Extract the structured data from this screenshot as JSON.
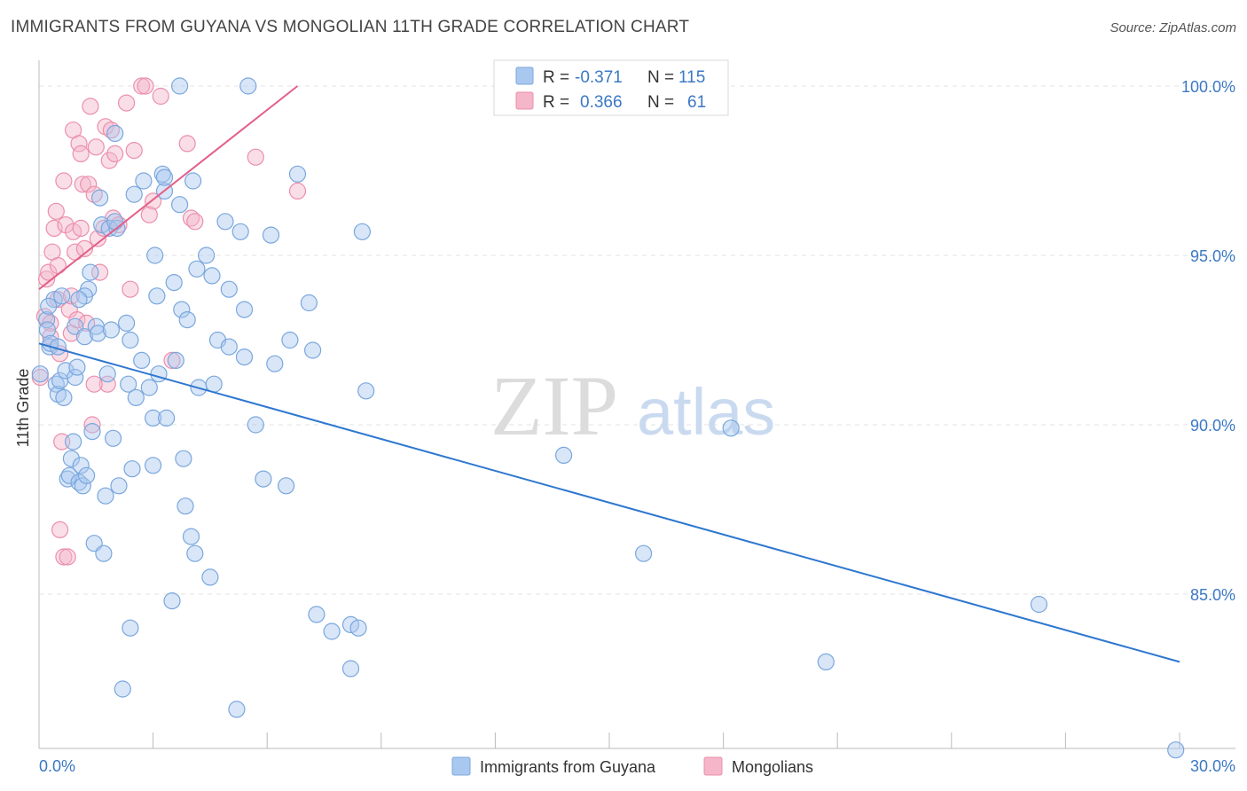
{
  "chart_data": {
    "type": "scatter",
    "title": "IMMIGRANTS FROM GUYANA VS MONGOLIAN 11TH GRADE CORRELATION CHART",
    "source": "Source: ZipAtlas.com",
    "xlabel": "",
    "ylabel": "11th Grade",
    "xlim": [
      0,
      30
    ],
    "ylim": [
      80.5,
      100.5
    ],
    "x_tick_labels": [
      "0.0%",
      "30.0%"
    ],
    "y_ticks": [
      {
        "value": 100,
        "label": "100.0%"
      },
      {
        "value": 95,
        "label": "95.0%"
      },
      {
        "value": 90,
        "label": "90.0%"
      },
      {
        "value": 85,
        "label": "85.0%"
      }
    ],
    "grid": true,
    "legend_position": "bottom-center",
    "watermark": "ZIPatlas",
    "colors": {
      "guyana": "#a9c8ef",
      "guyana_line": "#2e77d0",
      "mongolian": "#f5b6c9",
      "mongolian_line": "#e36089",
      "axis_text": "#3b78c4"
    },
    "stats_box": {
      "rows": [
        {
          "series": "guyana",
          "r_label": "R =",
          "r_value": "-0.371",
          "n_label": "N =",
          "n_value": "115"
        },
        {
          "series": "mongolian",
          "r_label": "R =",
          "r_value": "0.366",
          "n_label": "N =",
          "n_value": "61"
        }
      ]
    },
    "series": [
      {
        "name": "Immigrants from Guyana",
        "key": "guyana",
        "trendline": {
          "x": [
            0,
            30
          ],
          "y": [
            92.4,
            83.0
          ]
        },
        "points": [
          [
            0.03,
            91.5
          ],
          [
            0.2,
            93.1
          ],
          [
            0.22,
            92.8
          ],
          [
            0.28,
            92.3
          ],
          [
            0.3,
            92.4
          ],
          [
            0.4,
            93.7
          ],
          [
            0.45,
            91.2
          ],
          [
            0.5,
            90.9
          ],
          [
            0.55,
            91.3
          ],
          [
            0.6,
            93.8
          ],
          [
            0.65,
            90.8
          ],
          [
            0.7,
            91.6
          ],
          [
            0.75,
            88.4
          ],
          [
            0.8,
            88.5
          ],
          [
            0.85,
            89.0
          ],
          [
            0.9,
            89.5
          ],
          [
            0.95,
            92.9
          ],
          [
            0.95,
            91.4
          ],
          [
            1.0,
            91.7
          ],
          [
            1.05,
            88.3
          ],
          [
            1.1,
            88.8
          ],
          [
            1.15,
            88.2
          ],
          [
            1.2,
            92.6
          ],
          [
            1.25,
            88.5
          ],
          [
            1.3,
            94.0
          ],
          [
            1.35,
            94.5
          ],
          [
            1.4,
            89.8
          ],
          [
            1.45,
            86.5
          ],
          [
            1.5,
            92.9
          ],
          [
            1.55,
            92.7
          ],
          [
            1.6,
            96.7
          ],
          [
            1.65,
            95.9
          ],
          [
            1.7,
            86.2
          ],
          [
            1.75,
            87.9
          ],
          [
            1.8,
            91.5
          ],
          [
            1.85,
            95.8
          ],
          [
            1.9,
            92.8
          ],
          [
            1.95,
            89.6
          ],
          [
            2.0,
            98.6
          ],
          [
            2.05,
            95.8
          ],
          [
            2.1,
            88.2
          ],
          [
            2.2,
            82.2
          ],
          [
            2.3,
            93.0
          ],
          [
            2.35,
            91.2
          ],
          [
            2.4,
            92.5
          ],
          [
            2.4,
            84.0
          ],
          [
            2.45,
            88.7
          ],
          [
            2.5,
            96.8
          ],
          [
            2.55,
            90.8
          ],
          [
            2.7,
            91.9
          ],
          [
            2.75,
            97.2
          ],
          [
            2.9,
            91.1
          ],
          [
            3.0,
            88.8
          ],
          [
            3.0,
            90.2
          ],
          [
            3.05,
            95.0
          ],
          [
            3.1,
            93.8
          ],
          [
            3.15,
            91.5
          ],
          [
            3.25,
            97.4
          ],
          [
            3.3,
            96.9
          ],
          [
            3.35,
            90.2
          ],
          [
            3.5,
            84.8
          ],
          [
            3.55,
            94.2
          ],
          [
            3.6,
            91.9
          ],
          [
            3.7,
            100.0
          ],
          [
            3.7,
            96.5
          ],
          [
            3.75,
            93.4
          ],
          [
            3.8,
            89.0
          ],
          [
            3.85,
            87.6
          ],
          [
            3.9,
            93.1
          ],
          [
            4.0,
            86.7
          ],
          [
            4.05,
            97.2
          ],
          [
            4.1,
            86.2
          ],
          [
            4.15,
            94.6
          ],
          [
            4.2,
            91.1
          ],
          [
            4.4,
            95.0
          ],
          [
            4.5,
            85.5
          ],
          [
            4.55,
            94.4
          ],
          [
            4.6,
            91.2
          ],
          [
            4.7,
            92.5
          ],
          [
            4.9,
            96.0
          ],
          [
            5.0,
            92.3
          ],
          [
            5.2,
            81.6
          ],
          [
            5.3,
            95.7
          ],
          [
            5.4,
            93.4
          ],
          [
            5.4,
            92.0
          ],
          [
            5.7,
            90.0
          ],
          [
            5.9,
            88.4
          ],
          [
            6.1,
            95.6
          ],
          [
            6.2,
            91.8
          ],
          [
            6.5,
            88.2
          ],
          [
            6.6,
            92.5
          ],
          [
            6.8,
            97.4
          ],
          [
            7.1,
            93.6
          ],
          [
            7.2,
            92.2
          ],
          [
            7.3,
            84.4
          ],
          [
            7.7,
            83.9
          ],
          [
            8.2,
            84.1
          ],
          [
            8.2,
            82.8
          ],
          [
            8.4,
            84.0
          ],
          [
            8.5,
            95.7
          ],
          [
            8.6,
            91.0
          ],
          [
            13.8,
            89.1
          ],
          [
            15.9,
            86.2
          ],
          [
            18.2,
            89.9
          ],
          [
            20.7,
            83.0
          ],
          [
            26.3,
            84.7
          ],
          [
            29.9,
            80.4
          ],
          [
            5.5,
            100.0
          ],
          [
            2.0,
            96.0
          ],
          [
            1.2,
            93.8
          ],
          [
            0.5,
            92.3
          ],
          [
            1.05,
            93.7
          ],
          [
            3.3,
            97.3
          ],
          [
            5.0,
            94.0
          ],
          [
            0.25,
            93.5
          ]
        ]
      },
      {
        "name": "Mongolians",
        "key": "mongolian",
        "trendline": {
          "x": [
            0,
            6.8
          ],
          "y": [
            94.0,
            100.0
          ]
        },
        "points": [
          [
            0.03,
            91.4
          ],
          [
            0.15,
            93.2
          ],
          [
            0.2,
            94.3
          ],
          [
            0.25,
            94.5
          ],
          [
            0.3,
            93.0
          ],
          [
            0.35,
            95.1
          ],
          [
            0.4,
            95.8
          ],
          [
            0.45,
            96.3
          ],
          [
            0.5,
            94.7
          ],
          [
            0.55,
            92.1
          ],
          [
            0.55,
            86.9
          ],
          [
            0.6,
            89.5
          ],
          [
            0.65,
            97.2
          ],
          [
            0.65,
            86.1
          ],
          [
            0.7,
            95.9
          ],
          [
            0.75,
            86.1
          ],
          [
            0.8,
            93.4
          ],
          [
            0.85,
            92.7
          ],
          [
            0.9,
            95.7
          ],
          [
            0.95,
            95.1
          ],
          [
            0.9,
            98.7
          ],
          [
            1.0,
            93.1
          ],
          [
            1.05,
            98.3
          ],
          [
            1.1,
            95.8
          ],
          [
            1.1,
            98.0
          ],
          [
            1.15,
            97.1
          ],
          [
            1.2,
            95.2
          ],
          [
            1.25,
            93.0
          ],
          [
            1.3,
            97.1
          ],
          [
            1.35,
            99.4
          ],
          [
            1.4,
            90.0
          ],
          [
            1.45,
            96.8
          ],
          [
            1.5,
            98.2
          ],
          [
            1.55,
            95.5
          ],
          [
            1.6,
            94.5
          ],
          [
            1.7,
            95.8
          ],
          [
            1.75,
            98.8
          ],
          [
            1.8,
            91.2
          ],
          [
            1.85,
            97.8
          ],
          [
            1.9,
            98.7
          ],
          [
            1.95,
            96.1
          ],
          [
            2.0,
            98.0
          ],
          [
            2.1,
            95.9
          ],
          [
            2.3,
            99.5
          ],
          [
            2.4,
            94.0
          ],
          [
            2.5,
            98.1
          ],
          [
            2.7,
            100.0
          ],
          [
            2.8,
            100.0
          ],
          [
            3.0,
            96.6
          ],
          [
            3.2,
            99.7
          ],
          [
            3.5,
            91.9
          ],
          [
            3.9,
            98.3
          ],
          [
            4.0,
            96.1
          ],
          [
            4.1,
            96.0
          ],
          [
            5.7,
            97.9
          ],
          [
            6.8,
            96.9
          ],
          [
            0.5,
            93.7
          ],
          [
            0.85,
            93.8
          ],
          [
            1.45,
            91.2
          ],
          [
            2.9,
            96.2
          ],
          [
            0.3,
            92.6
          ]
        ]
      }
    ]
  }
}
